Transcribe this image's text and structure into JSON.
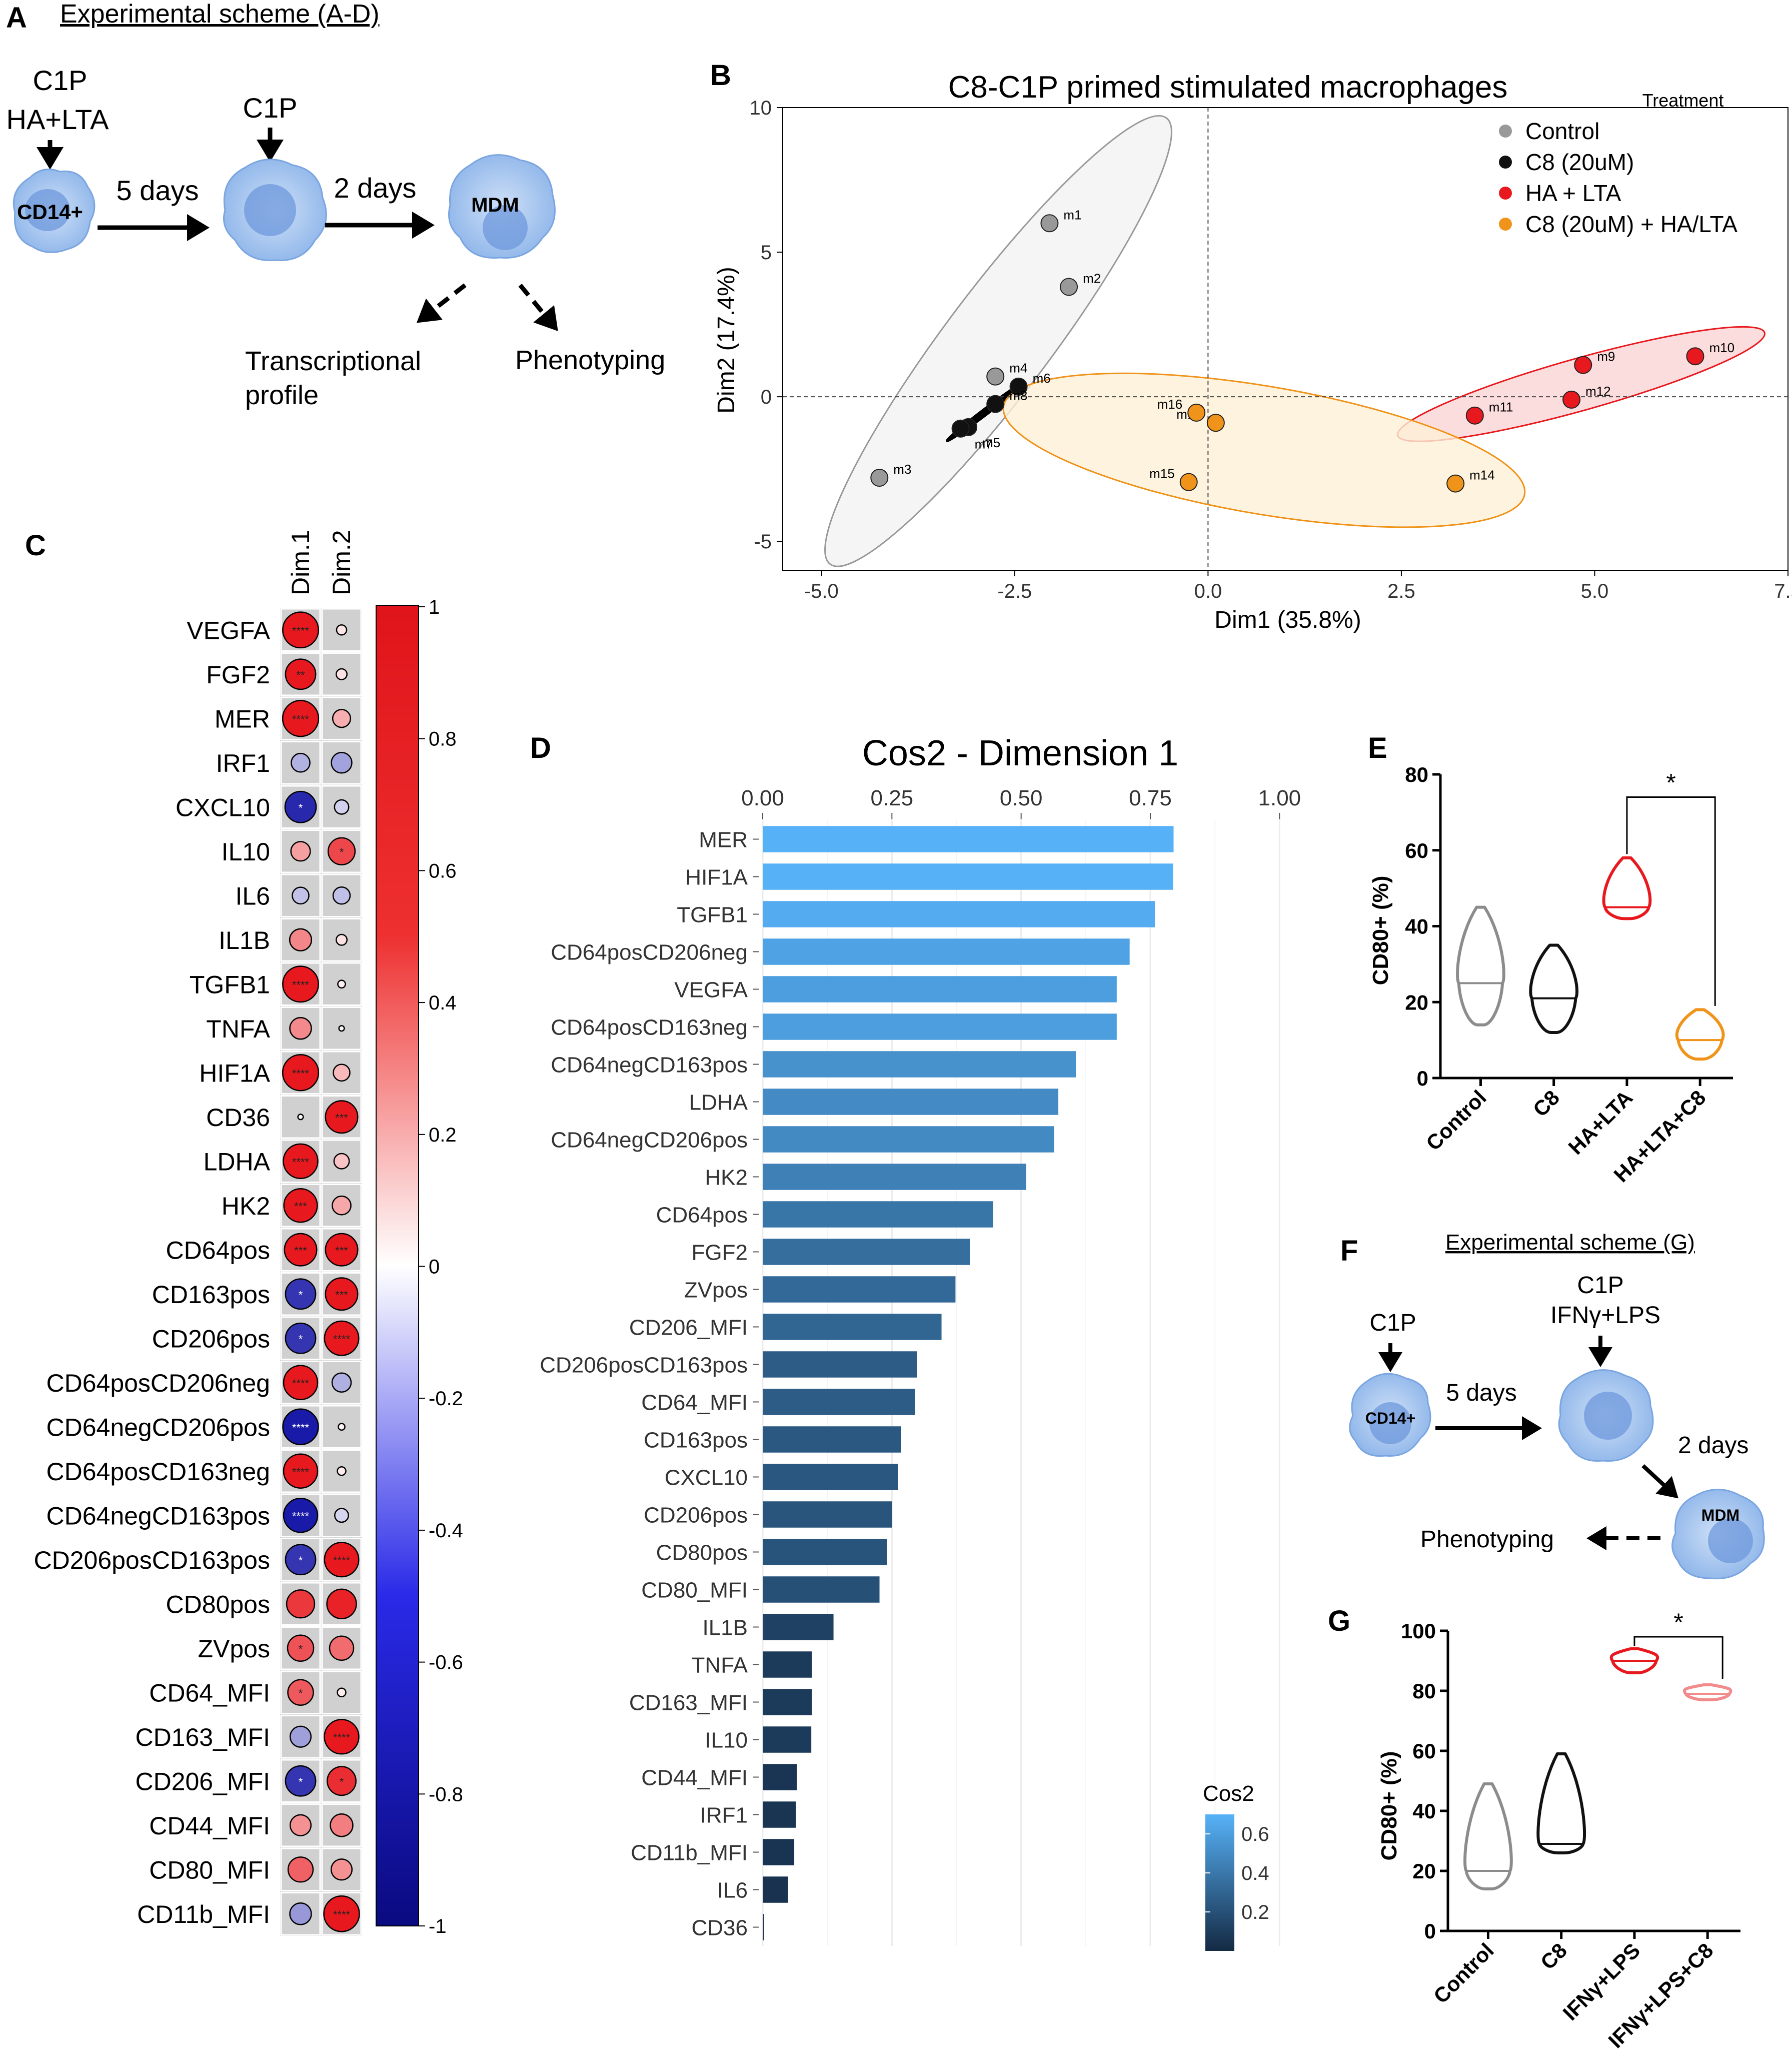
{
  "panel_letters": {
    "a": "A",
    "b": "B",
    "c": "C",
    "d": "D",
    "e": "E",
    "f": "F",
    "g": "G"
  },
  "scheme_a": {
    "title": "Experimental scheme (A-D)",
    "top_label_1": "C1P",
    "top_label_2": "HA+LTA",
    "second_label": "C1P",
    "cell_1": "CD14+",
    "cell_3": "MDM",
    "arrow_1": "5 days",
    "arrow_2": "2 days",
    "out_1a": "Transcriptional",
    "out_1b": "profile",
    "out_2": "Phenotyping"
  },
  "scheme_f": {
    "title": "Experimental scheme (G)",
    "label_1": "C1P",
    "label_2a": "C1P",
    "label_2b": "IFNγ+LPS",
    "cell_1": "CD14+",
    "cell_3": "MDM",
    "arrow_1": "5 days",
    "arrow_2": "2 days",
    "out": "Phenotyping"
  },
  "colors": {
    "control": "#999999",
    "c8": "#111111",
    "ha": "#e8191e",
    "c8ha": "#f0931a",
    "red": "#e8191e",
    "blue": "#1a1aa8",
    "violin_light": "#f28b8b"
  },
  "chart_data": [
    {
      "id": "B",
      "type": "scatter",
      "title": "C8-C1P primed stimulated macrophages",
      "xlabel": "Dim1 (35.8%)",
      "ylabel": "Dim2 (17.4%)",
      "xlim": [
        -5.5,
        7.5
      ],
      "ylim": [
        -6,
        10
      ],
      "xticks": [
        -5.0,
        -2.5,
        0.0,
        2.5,
        5.0,
        7.5
      ],
      "xtick_labels": [
        "-5.0",
        "-2.5",
        "0.0",
        "2.5",
        "5.0",
        "7.5"
      ],
      "yticks": [
        -5,
        0,
        5,
        10
      ],
      "ytick_labels": [
        "-5",
        "0",
        "5",
        "10"
      ],
      "legend_title": "Treatment",
      "series": [
        {
          "name": "Control",
          "color": "#999999",
          "points": [
            {
              "label": "m1",
              "x": -2.05,
              "y": 6.0
            },
            {
              "label": "m2",
              "x": -1.8,
              "y": 3.8
            },
            {
              "label": "m3",
              "x": -4.25,
              "y": -2.8
            },
            {
              "label": "m4",
              "x": -2.75,
              "y": 0.7
            }
          ]
        },
        {
          "name": "C8 (20uM)",
          "color": "#111111",
          "points": [
            {
              "label": "m5",
              "x": -3.1,
              "y": -1.05
            },
            {
              "label": "m6",
              "x": -2.45,
              "y": 0.35
            },
            {
              "label": "m7",
              "x": -3.2,
              "y": -1.1
            },
            {
              "label": "m8",
              "x": -2.75,
              "y": -0.25
            }
          ]
        },
        {
          "name": "HA + LTA",
          "color": "#e8191e",
          "points": [
            {
              "label": "m9",
              "x": 4.85,
              "y": 1.1
            },
            {
              "label": "m10",
              "x": 6.3,
              "y": 1.4
            },
            {
              "label": "m11",
              "x": 3.45,
              "y": -0.65
            },
            {
              "label": "m12",
              "x": 4.7,
              "y": -0.1
            }
          ]
        },
        {
          "name": "C8 (20uM) + HA/LTA",
          "color": "#f0931a",
          "points": [
            {
              "label": "m13",
              "x": 0.1,
              "y": -0.9
            },
            {
              "label": "m14",
              "x": 3.2,
              "y": -3.0
            },
            {
              "label": "m15",
              "x": -0.25,
              "y": -2.95
            },
            {
              "label": "m16",
              "x": -0.15,
              "y": -0.55
            }
          ]
        }
      ]
    },
    {
      "id": "C",
      "type": "heatmap",
      "columns": [
        "Dim.1",
        "Dim.2"
      ],
      "rows": [
        "VEGFA",
        "FGF2",
        "MER",
        "IRF1",
        "CXCL10",
        "IL10",
        "IL6",
        "IL1B",
        "TGFB1",
        "TNFA",
        "HIF1A",
        "CD36",
        "LDHA",
        "HK2",
        "CD64pos",
        "CD163pos",
        "CD206pos",
        "CD64posCD206neg",
        "CD64negCD206pos",
        "CD64posCD163neg",
        "CD64negCD163pos",
        "CD206posCD163pos",
        "CD80pos",
        "ZVpos",
        "CD64_MFI",
        "CD163_MFI",
        "CD206_MFI",
        "CD44_MFI",
        "CD80_MFI",
        "CD11b_MFI"
      ],
      "values": [
        [
          0.88,
          0.07
        ],
        [
          0.63,
          0.08
        ],
        [
          0.89,
          0.22
        ],
        [
          -0.24,
          -0.29
        ],
        [
          -0.67,
          -0.14
        ],
        [
          0.26,
          0.5
        ],
        [
          -0.19,
          -0.2
        ],
        [
          0.33,
          0.08
        ],
        [
          0.88,
          0.04
        ],
        [
          0.32,
          0.02
        ],
        [
          0.89,
          0.19
        ],
        [
          0.02,
          0.72
        ],
        [
          0.82,
          0.16
        ],
        [
          0.77,
          0.24
        ],
        [
          0.72,
          0.72
        ],
        [
          -0.63,
          0.72
        ],
        [
          -0.63,
          0.81
        ],
        [
          0.8,
          -0.25
        ],
        [
          -0.87,
          0.03
        ],
        [
          0.8,
          0.05
        ],
        [
          -0.8,
          -0.13
        ],
        [
          -0.63,
          0.81
        ],
        [
          0.54,
          0.6
        ],
        [
          0.47,
          0.4
        ],
        [
          0.45,
          0.05
        ],
        [
          -0.3,
          0.82
        ],
        [
          -0.63,
          0.57
        ],
        [
          0.3,
          0.35
        ],
        [
          0.43,
          0.3
        ],
        [
          -0.32,
          0.87
        ]
      ],
      "stars": [
        [
          "****",
          ""
        ],
        [
          "**",
          ""
        ],
        [
          "****",
          ""
        ],
        [
          "",
          ""
        ],
        [
          "*",
          ""
        ],
        [
          "",
          "*"
        ],
        [
          "",
          ""
        ],
        [
          "",
          ""
        ],
        [
          "****",
          ""
        ],
        [
          "",
          ""
        ],
        [
          "****",
          ""
        ],
        [
          "",
          "***"
        ],
        [
          "****",
          ""
        ],
        [
          "***",
          ""
        ],
        [
          "***",
          "***"
        ],
        [
          "*",
          "***"
        ],
        [
          "*",
          "****"
        ],
        [
          "****",
          ""
        ],
        [
          "****",
          ""
        ],
        [
          "****",
          ""
        ],
        [
          "****",
          ""
        ],
        [
          "*",
          "****"
        ],
        [
          "",
          ""
        ],
        [
          "*",
          ""
        ],
        [
          "*",
          ""
        ],
        [
          "",
          "****"
        ],
        [
          "*",
          "*"
        ],
        [
          "",
          ""
        ],
        [
          "",
          ""
        ],
        [
          "",
          "****"
        ]
      ],
      "colorbar_ticks": [
        1,
        0.8,
        0.6,
        0.4,
        0.2,
        0,
        -0.2,
        -0.4,
        -0.6,
        -0.8,
        -1
      ],
      "colorbar_labels": [
        "1",
        "0.8",
        "0.6",
        "0.4",
        "0.2",
        "0",
        "-0.2",
        "-0.4",
        "-0.6",
        "-0.8",
        "-1"
      ]
    },
    {
      "id": "D",
      "type": "bar",
      "title": "Cos2 - Dimension 1",
      "xlim": [
        0,
        1.05
      ],
      "xticks": [
        0,
        0.25,
        0.5,
        0.75,
        1.0
      ],
      "xtick_labels": [
        "0.00",
        "0.25",
        "0.50",
        "0.75",
        "1.00"
      ],
      "legend_title": "Cos2",
      "legend_ticks": [
        0.6,
        0.4,
        0.2
      ],
      "legend_labels": [
        "0.6",
        "0.4",
        "0.2"
      ],
      "categories": [
        "MER",
        "HIF1A",
        "TGFB1",
        "CD64posCD206neg",
        "VEGFA",
        "CD64posCD163neg",
        "CD64negCD163pos",
        "LDHA",
        "CD64negCD206pos",
        "HK2",
        "CD64pos",
        "FGF2",
        "ZVpos",
        "CD206_MFI",
        "CD206posCD163pos",
        "CD64_MFI",
        "CD163pos",
        "CXCL10",
        "CD206pos",
        "CD80pos",
        "CD80_MFI",
        "IL1B",
        "TNFA",
        "CD163_MFI",
        "IL10",
        "CD44_MFI",
        "IRF1",
        "CD11b_MFI",
        "IL6",
        "CD36"
      ],
      "values": [
        0.795,
        0.794,
        0.759,
        0.71,
        0.685,
        0.685,
        0.606,
        0.572,
        0.564,
        0.51,
        0.446,
        0.401,
        0.373,
        0.346,
        0.299,
        0.295,
        0.268,
        0.262,
        0.25,
        0.24,
        0.226,
        0.137,
        0.095,
        0.095,
        0.094,
        0.066,
        0.064,
        0.061,
        0.049,
        0.002
      ]
    },
    {
      "id": "E",
      "type": "violin",
      "ylabel": "CD80+ (%)",
      "ylim": [
        0,
        80
      ],
      "yticks": [
        0,
        20,
        40,
        60,
        80
      ],
      "ytick_labels": [
        "0",
        "20",
        "40",
        "60",
        "80"
      ],
      "categories": [
        "Control",
        "C8",
        "HA+LTA",
        "HA+LTA+C8"
      ],
      "series": [
        {
          "name": "Control",
          "color": "#8c8c8c",
          "min": 14,
          "median": 25,
          "max": 45
        },
        {
          "name": "C8",
          "color": "#111111",
          "min": 12,
          "median": 21,
          "max": 35
        },
        {
          "name": "HA+LTA",
          "color": "#e8191e",
          "min": 42,
          "median": 45,
          "max": 58
        },
        {
          "name": "HA+LTA+C8",
          "color": "#f0931a",
          "min": 5,
          "median": 10,
          "max": 18
        }
      ],
      "significance": {
        "between": [
          "HA+LTA",
          "HA+LTA+C8"
        ],
        "label": "*"
      }
    },
    {
      "id": "G",
      "type": "violin",
      "ylabel": "CD80+ (%)",
      "ylim": [
        0,
        100
      ],
      "yticks": [
        0,
        20,
        40,
        60,
        80,
        100
      ],
      "ytick_labels": [
        "0",
        "20",
        "40",
        "60",
        "80",
        "100"
      ],
      "categories": [
        "Control",
        "C8",
        "IFNγ+LPS",
        "IFNγ+LPS+C8"
      ],
      "series": [
        {
          "name": "Control",
          "color": "#8c8c8c",
          "min": 14,
          "median": 20,
          "max": 49
        },
        {
          "name": "C8",
          "color": "#111111",
          "min": 26,
          "median": 29,
          "max": 59
        },
        {
          "name": "IFNγ+LPS",
          "color": "#e8191e",
          "min": 86,
          "median": 90,
          "max": 94
        },
        {
          "name": "IFNγ+LPS+C8",
          "color": "#f28b8b",
          "min": 77,
          "median": 79,
          "max": 82
        }
      ],
      "significance": {
        "between": [
          "IFNγ+LPS",
          "IFNγ+LPS+C8"
        ],
        "label": "*"
      }
    }
  ]
}
